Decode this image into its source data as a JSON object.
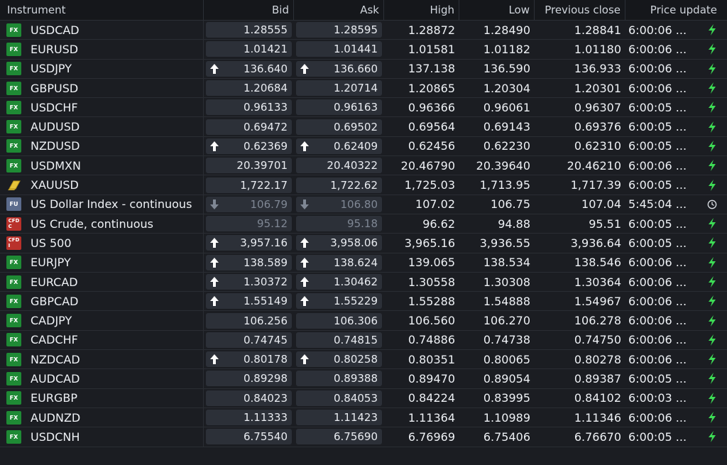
{
  "columns": {
    "instrument": "Instrument",
    "bid": "Bid",
    "ask": "Ask",
    "high": "High",
    "low": "Low",
    "prev_close": "Previous close",
    "price_update": "Price update"
  },
  "colors": {
    "fx_badge": "#1f8a35",
    "cfd_badge": "#b9312b",
    "fu_badge": "#5b6b8c",
    "live_icon": "#3ddc55"
  },
  "rows": [
    {
      "badge": "FX",
      "name": "USDCAD",
      "bid": "1.28555",
      "ask": "1.28595",
      "high": "1.28872",
      "low": "1.28490",
      "prev": "1.28841",
      "time": "6:00:06 ...",
      "arrow": "none",
      "stale": false,
      "status": "live-bolt-icon"
    },
    {
      "badge": "FX",
      "name": "EURUSD",
      "bid": "1.01421",
      "ask": "1.01441",
      "high": "1.01581",
      "low": "1.01182",
      "prev": "1.01180",
      "time": "6:00:06 ...",
      "arrow": "none",
      "stale": false,
      "status": "live-bolt-icon"
    },
    {
      "badge": "FX",
      "name": "USDJPY",
      "bid": "136.640",
      "ask": "136.660",
      "high": "137.138",
      "low": "136.590",
      "prev": "136.933",
      "time": "6:00:06 ...",
      "arrow": "up",
      "stale": false,
      "status": "live-bolt-icon"
    },
    {
      "badge": "FX",
      "name": "GBPUSD",
      "bid": "1.20684",
      "ask": "1.20714",
      "high": "1.20865",
      "low": "1.20304",
      "prev": "1.20301",
      "time": "6:00:06 ...",
      "arrow": "none",
      "stale": false,
      "status": "live-bolt-icon"
    },
    {
      "badge": "FX",
      "name": "USDCHF",
      "bid": "0.96133",
      "ask": "0.96163",
      "high": "0.96366",
      "low": "0.96061",
      "prev": "0.96307",
      "time": "6:00:05 ...",
      "arrow": "none",
      "stale": false,
      "status": "live-bolt-icon"
    },
    {
      "badge": "FX",
      "name": "AUDUSD",
      "bid": "0.69472",
      "ask": "0.69502",
      "high": "0.69564",
      "low": "0.69143",
      "prev": "0.69376",
      "time": "6:00:05 ...",
      "arrow": "none",
      "stale": false,
      "status": "live-bolt-icon"
    },
    {
      "badge": "FX",
      "name": "NZDUSD",
      "bid": "0.62369",
      "ask": "0.62409",
      "high": "0.62456",
      "low": "0.62230",
      "prev": "0.62310",
      "time": "6:00:05 ...",
      "arrow": "up",
      "stale": false,
      "status": "live-bolt-icon"
    },
    {
      "badge": "FX",
      "name": "USDMXN",
      "bid": "20.39701",
      "ask": "20.40322",
      "high": "20.46790",
      "low": "20.39640",
      "prev": "20.46210",
      "time": "6:00:06 ...",
      "arrow": "none",
      "stale": false,
      "status": "live-bolt-icon"
    },
    {
      "badge": "METAL",
      "name": "XAUUSD",
      "bid": "1,722.17",
      "ask": "1,722.62",
      "high": "1,725.03",
      "low": "1,713.95",
      "prev": "1,717.39",
      "time": "6:00:05 ...",
      "arrow": "none",
      "stale": false,
      "status": "live-bolt-icon"
    },
    {
      "badge": "FU",
      "name": "US Dollar Index - continuous",
      "bid": "106.79",
      "ask": "106.80",
      "high": "107.02",
      "low": "106.75",
      "prev": "107.04",
      "time": "5:45:04 ...",
      "arrow": "down",
      "stale": true,
      "status": "clock-icon"
    },
    {
      "badge": "CFD C",
      "name": "US Crude, continuous",
      "bid": "95.12",
      "ask": "95.18",
      "high": "96.62",
      "low": "94.88",
      "prev": "95.51",
      "time": "6:00:05 ...",
      "arrow": "none",
      "stale": true,
      "status": "live-bolt-icon"
    },
    {
      "badge": "CFD I",
      "name": "US 500",
      "bid": "3,957.16",
      "ask": "3,958.06",
      "high": "3,965.16",
      "low": "3,936.55",
      "prev": "3,936.64",
      "time": "6:00:05 ...",
      "arrow": "up",
      "stale": false,
      "status": "live-bolt-icon"
    },
    {
      "badge": "FX",
      "name": "EURJPY",
      "bid": "138.589",
      "ask": "138.624",
      "high": "139.065",
      "low": "138.534",
      "prev": "138.546",
      "time": "6:00:06 ...",
      "arrow": "up",
      "stale": false,
      "status": "live-bolt-icon"
    },
    {
      "badge": "FX",
      "name": "EURCAD",
      "bid": "1.30372",
      "ask": "1.30462",
      "high": "1.30558",
      "low": "1.30308",
      "prev": "1.30364",
      "time": "6:00:06 ...",
      "arrow": "up",
      "stale": false,
      "status": "live-bolt-icon"
    },
    {
      "badge": "FX",
      "name": "GBPCAD",
      "bid": "1.55149",
      "ask": "1.55229",
      "high": "1.55288",
      "low": "1.54888",
      "prev": "1.54967",
      "time": "6:00:06 ...",
      "arrow": "up",
      "stale": false,
      "status": "live-bolt-icon"
    },
    {
      "badge": "FX",
      "name": "CADJPY",
      "bid": "106.256",
      "ask": "106.306",
      "high": "106.560",
      "low": "106.270",
      "prev": "106.278",
      "time": "6:00:06 ...",
      "arrow": "none",
      "stale": false,
      "status": "live-bolt-icon"
    },
    {
      "badge": "FX",
      "name": "CADCHF",
      "bid": "0.74745",
      "ask": "0.74815",
      "high": "0.74886",
      "low": "0.74738",
      "prev": "0.74750",
      "time": "6:00:06 ...",
      "arrow": "none",
      "stale": false,
      "status": "live-bolt-icon"
    },
    {
      "badge": "FX",
      "name": "NZDCAD",
      "bid": "0.80178",
      "ask": "0.80258",
      "high": "0.80351",
      "low": "0.80065",
      "prev": "0.80278",
      "time": "6:00:06 ...",
      "arrow": "up",
      "stale": false,
      "status": "live-bolt-icon"
    },
    {
      "badge": "FX",
      "name": "AUDCAD",
      "bid": "0.89298",
      "ask": "0.89388",
      "high": "0.89470",
      "low": "0.89054",
      "prev": "0.89387",
      "time": "6:00:05 ...",
      "arrow": "none",
      "stale": false,
      "status": "live-bolt-icon"
    },
    {
      "badge": "FX",
      "name": "EURGBP",
      "bid": "0.84023",
      "ask": "0.84053",
      "high": "0.84224",
      "low": "0.83995",
      "prev": "0.84102",
      "time": "6:00:03 ...",
      "arrow": "none",
      "stale": false,
      "status": "live-bolt-icon"
    },
    {
      "badge": "FX",
      "name": "AUDNZD",
      "bid": "1.11333",
      "ask": "1.11423",
      "high": "1.11364",
      "low": "1.10989",
      "prev": "1.11346",
      "time": "6:00:06 ...",
      "arrow": "none",
      "stale": false,
      "status": "live-bolt-icon"
    },
    {
      "badge": "FX",
      "name": "USDCNH",
      "bid": "6.75540",
      "ask": "6.75690",
      "high": "6.76969",
      "low": "6.75406",
      "prev": "6.76670",
      "time": "6:00:05 ...",
      "arrow": "none",
      "stale": false,
      "status": "live-bolt-icon"
    }
  ]
}
